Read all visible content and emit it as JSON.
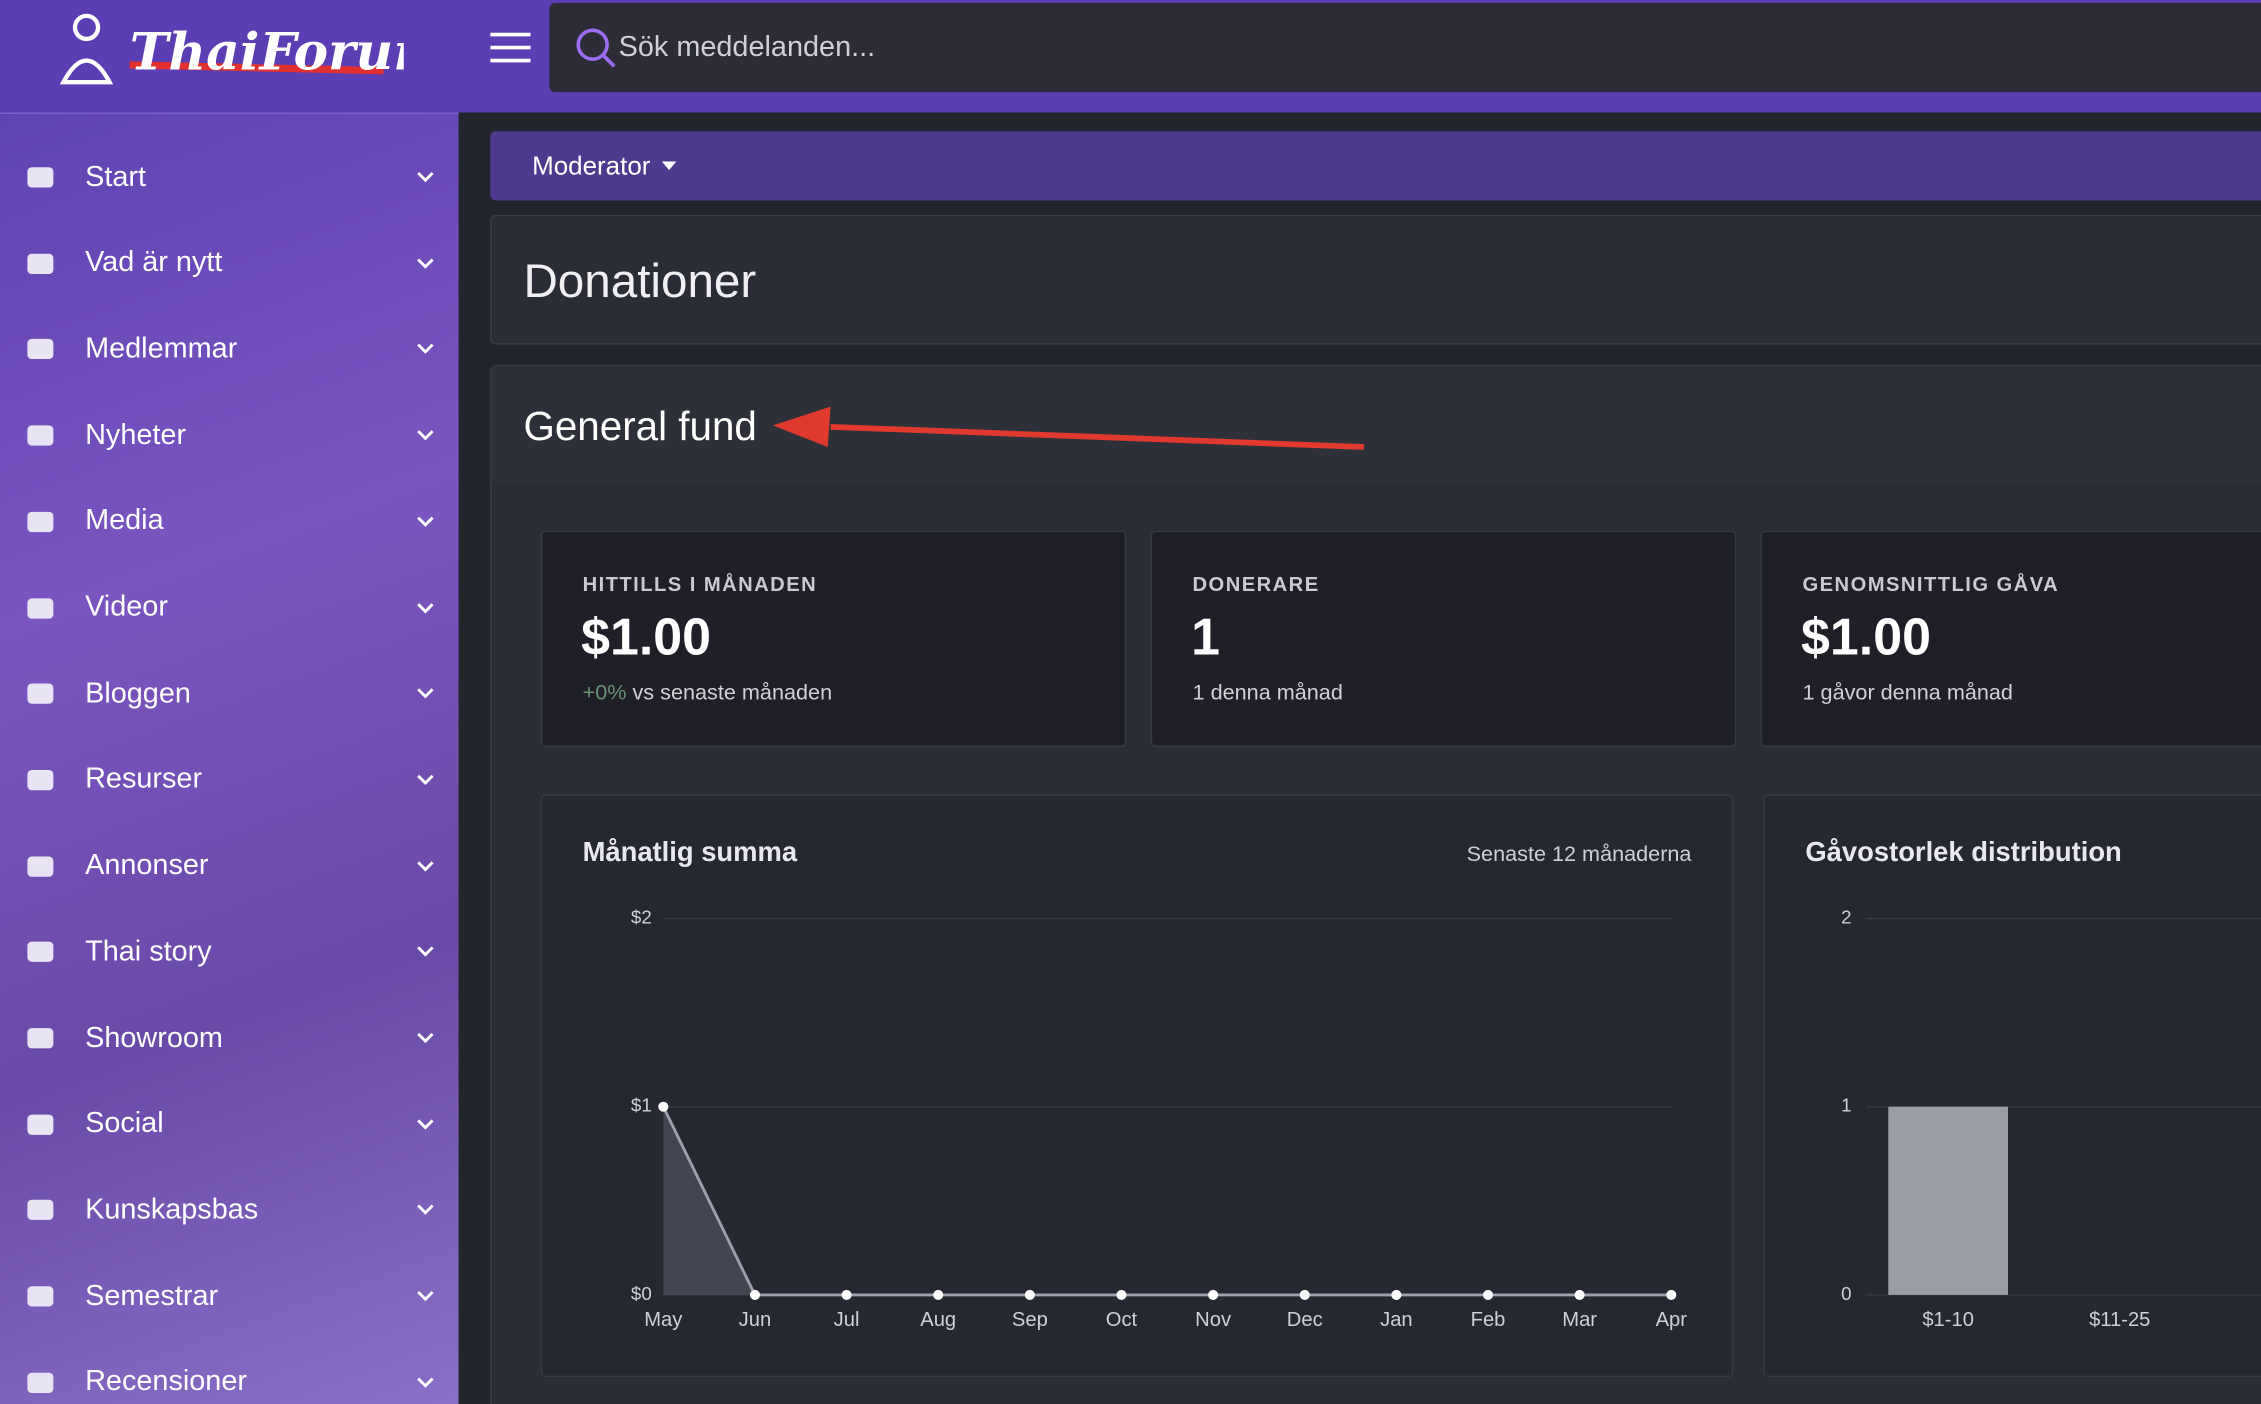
{
  "header": {
    "search_placeholder": "Sök meddelanden..."
  },
  "sidebar": {
    "items": [
      "Start",
      "Vad är nytt",
      "Medlemmar",
      "Nyheter",
      "Media",
      "Videor",
      "Bloggen",
      "Resurser",
      "Annonser",
      "Thai story",
      "Showroom",
      "Social",
      "Kunskapsbas",
      "Semestrar",
      "Recensioner"
    ]
  },
  "toolbar": {
    "menu": "Moderator"
  },
  "page": {
    "title": "Donationer",
    "section": "General fund"
  },
  "stats": [
    {
      "label": "HITTILLS I MÅNADEN",
      "value": "$1.00",
      "change": "+0%",
      "note": "vs senaste månaden"
    },
    {
      "label": "DONERARE",
      "value": "1",
      "note": "1 denna månad"
    },
    {
      "label": "GENOMSNITTLIG GÅVA",
      "value": "$1.00",
      "note": "1 gåvor denna månad"
    }
  ],
  "chart_data": [
    {
      "type": "area",
      "title": "Månatlig summa",
      "subtitle": "Senaste 12 månaderna",
      "categories": [
        "May",
        "Jun",
        "Jul",
        "Aug",
        "Sep",
        "Oct",
        "Nov",
        "Dec",
        "Jan",
        "Feb",
        "Mar",
        "Apr"
      ],
      "values": [
        1,
        0,
        0,
        0,
        0,
        0,
        0,
        0,
        0,
        0,
        0,
        0
      ],
      "color": "#9aa0ad",
      "ylim": [
        0,
        2
      ],
      "yticks": [
        {
          "value": 0,
          "label": "$0"
        },
        {
          "value": 1,
          "label": "$1"
        },
        {
          "value": 2,
          "label": "$2"
        }
      ],
      "grid": true
    },
    {
      "type": "bar",
      "title": "Gåvostorlek distribution",
      "categories": [
        "$1-10",
        "$11-25"
      ],
      "values": [
        1,
        0
      ],
      "color": "#9a9ca6",
      "ylim": [
        0,
        2
      ],
      "yticks": [
        0,
        1,
        2
      ],
      "grid": true
    }
  ]
}
